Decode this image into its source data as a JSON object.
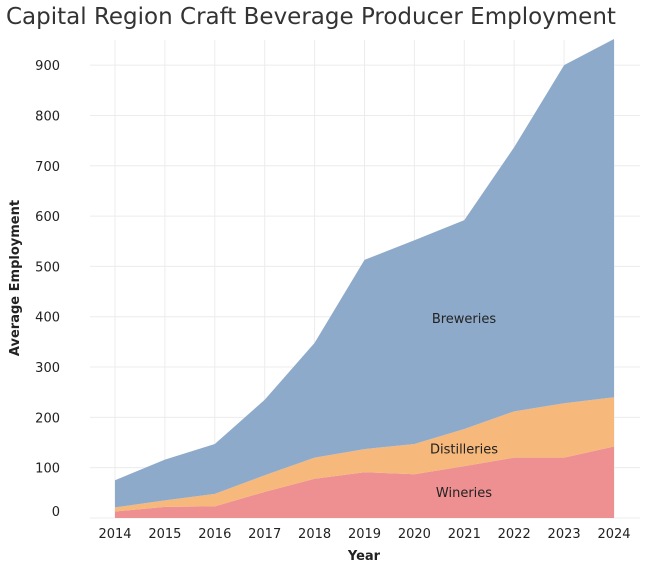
{
  "chart_data": {
    "type": "area",
    "stacked": true,
    "title": "Capital Region Craft Beverage Producer Employment",
    "xlabel": "Year",
    "ylabel": "Average Employment",
    "x": [
      2014,
      2015,
      2016,
      2017,
      2018,
      2019,
      2020,
      2021,
      2022,
      2023,
      2024
    ],
    "ylim": [
      0,
      950
    ],
    "yticks": [
      0,
      100,
      200,
      300,
      400,
      500,
      600,
      700,
      800,
      900
    ],
    "grid": true,
    "legend": "inline",
    "series": [
      {
        "name": "Wineries",
        "color": "#ee9092",
        "values": [
          13,
          22,
          23,
          52,
          78,
          91,
          87,
          103,
          120,
          120,
          142
        ]
      },
      {
        "name": "Distilleries",
        "color": "#f6b87b",
        "values": [
          8,
          13,
          25,
          33,
          42,
          46,
          60,
          74,
          92,
          108,
          98
        ]
      },
      {
        "name": "Breweries",
        "color": "#8eaaca",
        "values": [
          54,
          81,
          99,
          150,
          228,
          376,
          405,
          415,
          525,
          672,
          712
        ]
      }
    ]
  }
}
